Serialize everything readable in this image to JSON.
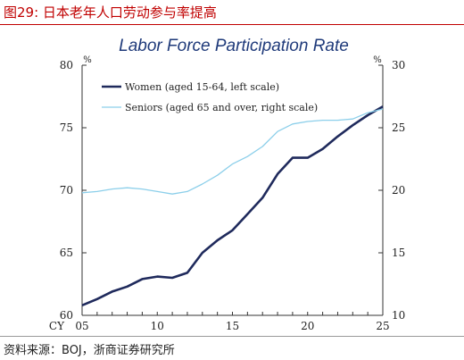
{
  "figure_title": "图29:   日本老年人口劳动参与率提高",
  "source": "资料来源：BOJ，浙商证券研究所",
  "chart_data": {
    "type": "line",
    "title": "Labor Force Participation Rate",
    "x_axis": {
      "prefix_label": "CY",
      "ticks": [
        2005,
        2010,
        2015,
        2020,
        2025
      ],
      "tick_labels": [
        "05",
        "10",
        "15",
        "20",
        "25"
      ],
      "range": [
        2005,
        2025
      ]
    },
    "y_left": {
      "unit": "%",
      "range": [
        60,
        80
      ],
      "ticks": [
        60,
        65,
        70,
        75,
        80
      ]
    },
    "y_right": {
      "unit": "%",
      "range": [
        10,
        30
      ],
      "ticks": [
        10,
        15,
        20,
        25,
        30
      ]
    },
    "legend_placement": "top-left",
    "grid": false,
    "series": [
      {
        "name": "Women (aged 15-64, left scale)",
        "axis": "left",
        "color": "#1f2a5c",
        "x": [
          2005,
          2006,
          2007,
          2008,
          2009,
          2010,
          2011,
          2012,
          2013,
          2014,
          2015,
          2016,
          2017,
          2018,
          2019,
          2020,
          2021,
          2022,
          2023,
          2024,
          2025
        ],
        "values": [
          60.8,
          61.3,
          61.9,
          62.3,
          62.9,
          63.1,
          63.0,
          63.4,
          65.0,
          66.0,
          66.8,
          68.1,
          69.4,
          71.3,
          72.6,
          72.6,
          73.3,
          74.3,
          75.2,
          76.0,
          76.7
        ]
      },
      {
        "name": "Seniors (aged 65 and over, right scale)",
        "axis": "right",
        "color": "#8ccfea",
        "x": [
          2005,
          2006,
          2007,
          2008,
          2009,
          2010,
          2011,
          2012,
          2013,
          2014,
          2015,
          2016,
          2017,
          2018,
          2019,
          2020,
          2021,
          2022,
          2023,
          2024,
          2025
        ],
        "values": [
          19.8,
          19.9,
          20.1,
          20.2,
          20.1,
          19.9,
          19.7,
          19.9,
          20.5,
          21.2,
          22.1,
          22.7,
          23.5,
          24.7,
          25.3,
          25.5,
          25.6,
          25.6,
          25.7,
          26.2,
          26.5
        ]
      }
    ]
  }
}
